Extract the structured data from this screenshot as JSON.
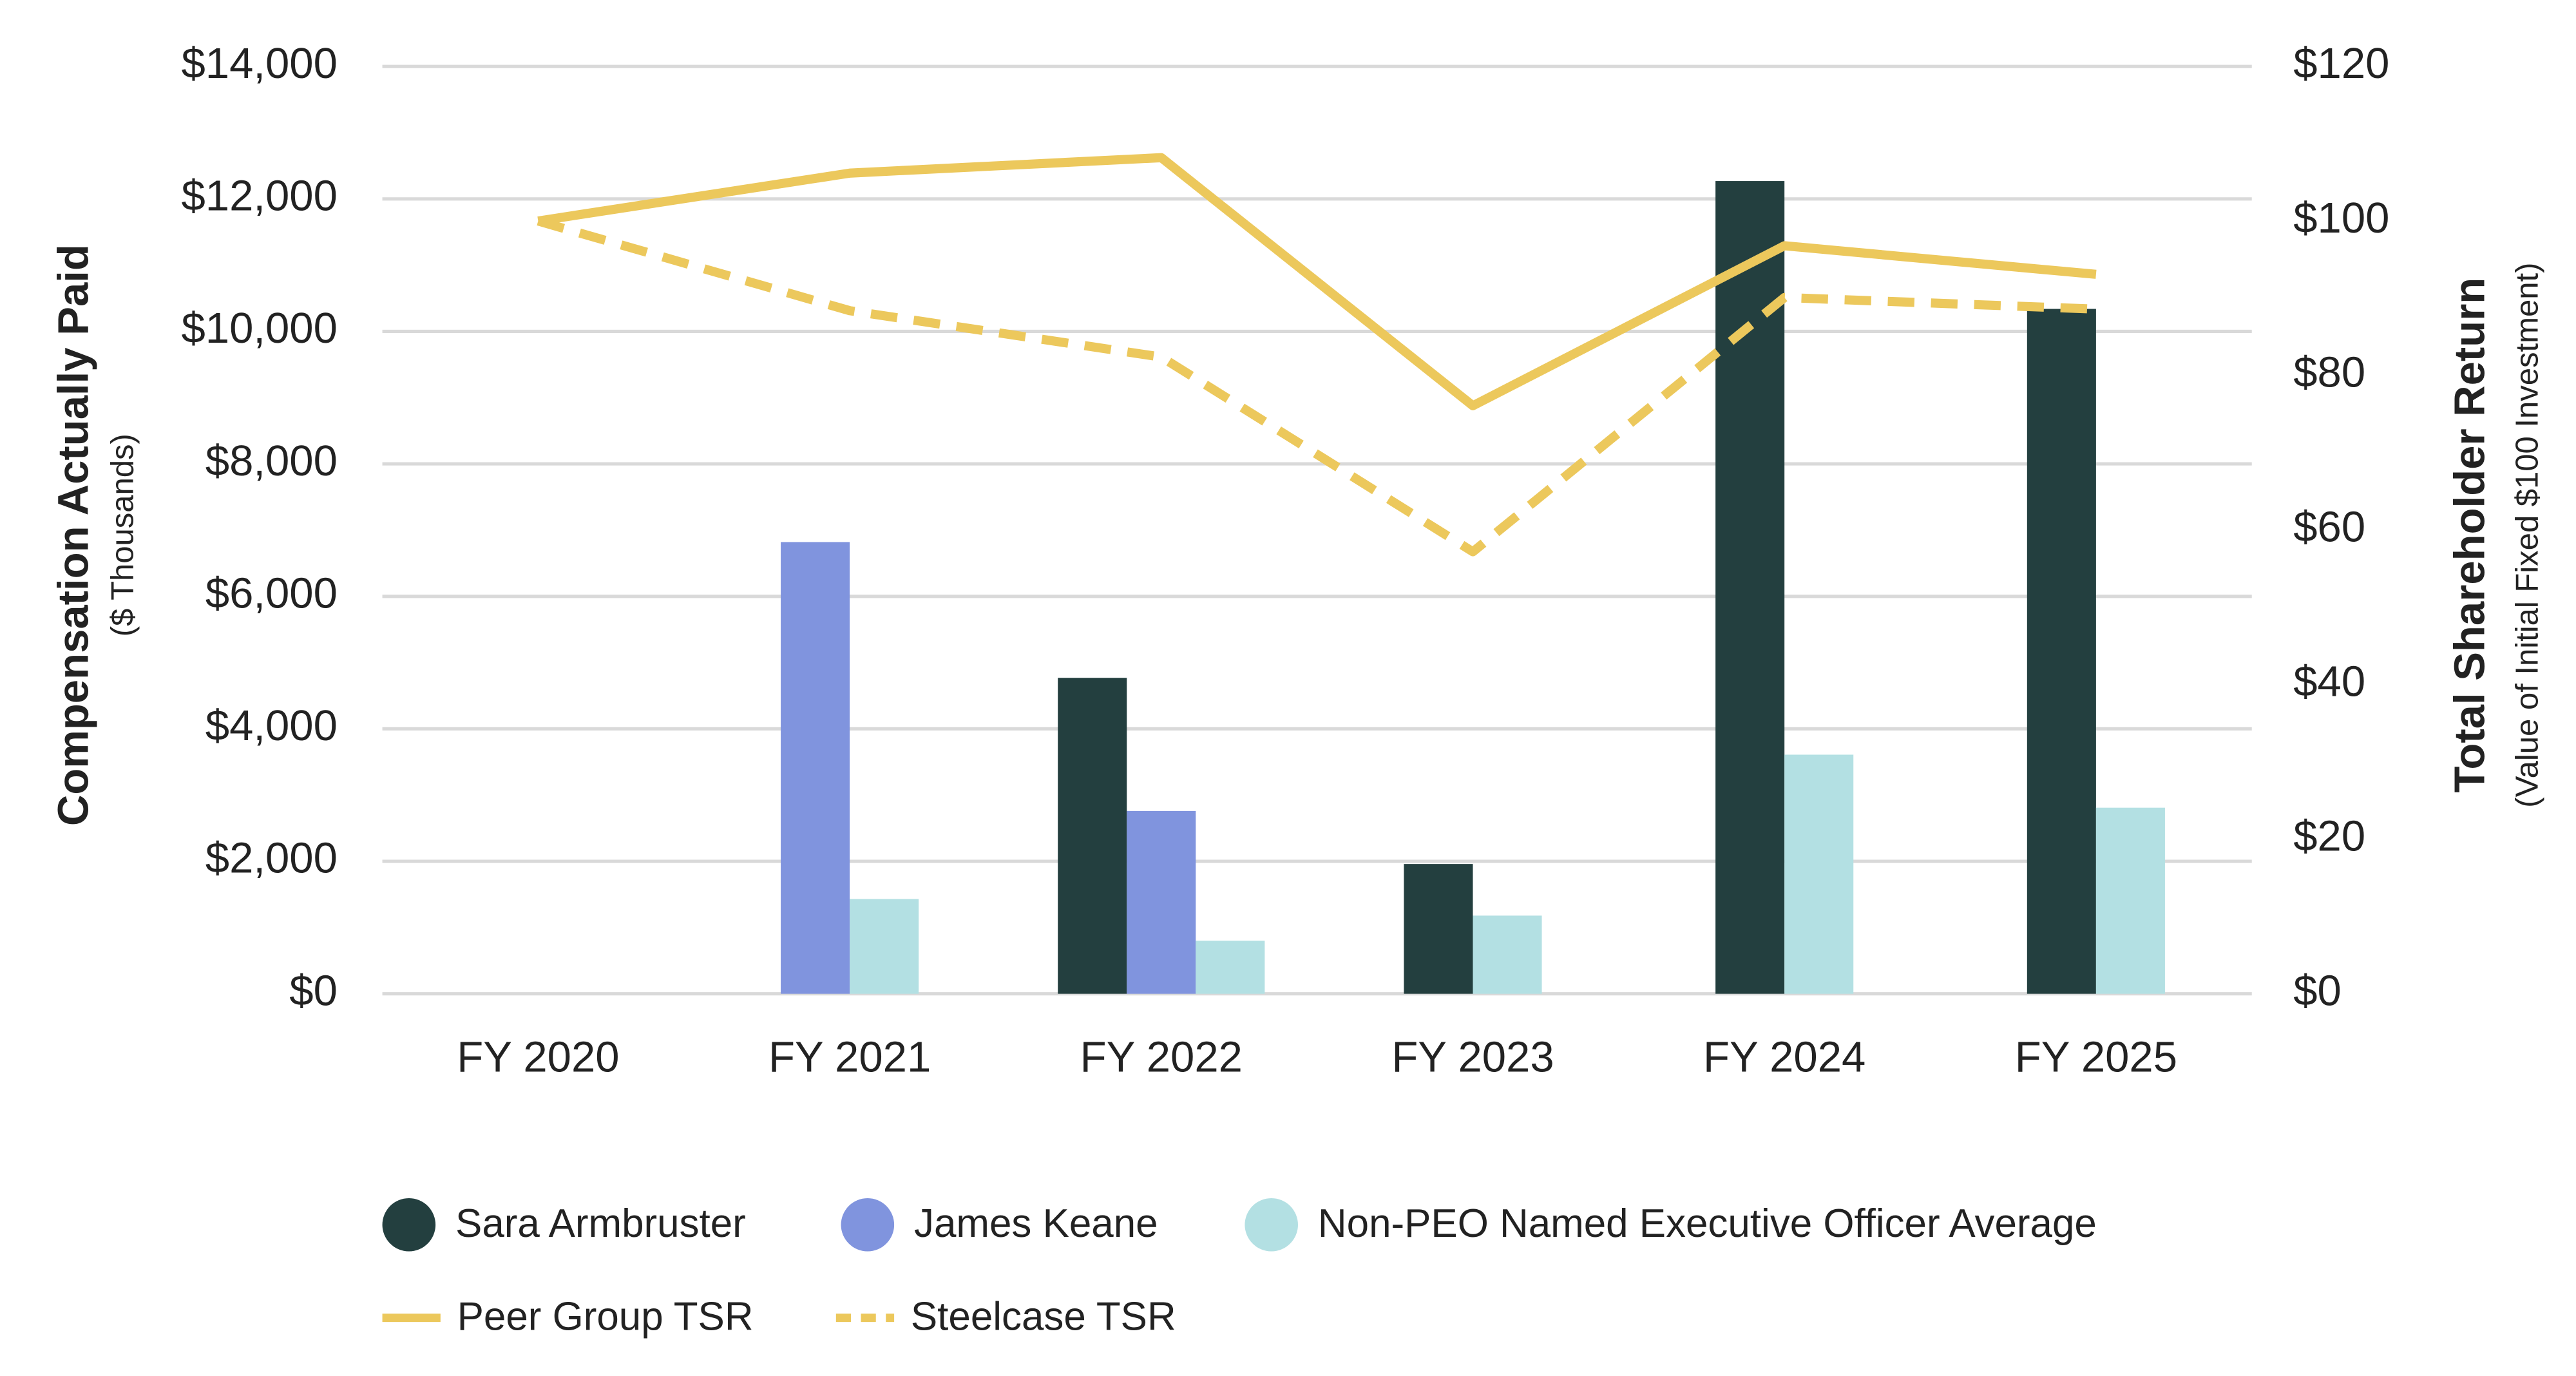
{
  "chart_data": {
    "type": "bar",
    "y_label": "Compensation Actually Paid",
    "y_sublabel": "($ Thousands)",
    "y2_label": "Total Shareholder Return",
    "y2_sublabel": "(Value of Initial Fixed $100 Investment)",
    "categories": [
      "FY 2020",
      "FY 2021",
      "FY 2022",
      "FY 2023",
      "FY 2024",
      "FY 2025"
    ],
    "ylim": [
      0,
      14000
    ],
    "yticks": [
      {
        "value": 0,
        "label": "$0"
      },
      {
        "value": 2000,
        "label": "$2,000"
      },
      {
        "value": 4000,
        "label": "$4,000"
      },
      {
        "value": 6000,
        "label": "$6,000"
      },
      {
        "value": 8000,
        "label": "$8,000"
      },
      {
        "value": 10000,
        "label": "$10,000"
      },
      {
        "value": 12000,
        "label": "$12,000"
      },
      {
        "value": 14000,
        "label": "$14,000"
      }
    ],
    "y2lim": [
      0,
      120
    ],
    "y2ticks": [
      {
        "value": 0,
        "label": "$0"
      },
      {
        "value": 20,
        "label": "$20"
      },
      {
        "value": 40,
        "label": "$40"
      },
      {
        "value": 60,
        "label": "$60"
      },
      {
        "value": 80,
        "label": "$80"
      },
      {
        "value": 100,
        "label": "$100"
      },
      {
        "value": 120,
        "label": "$120"
      }
    ],
    "grid": true,
    "series": [
      {
        "name": "Sara Armbruster",
        "type": "bar",
        "color": "#233f3f",
        "values": [
          null,
          null,
          4770,
          1960,
          12270,
          10340
        ]
      },
      {
        "name": "James Keane",
        "type": "bar",
        "color": "#8094de",
        "values": [
          null,
          6820,
          2760,
          null,
          null,
          null
        ]
      },
      {
        "name": "Non-PEO Named Executive Officer Average",
        "type": "bar",
        "color": "#b3e0e3",
        "values": [
          null,
          1430,
          800,
          1180,
          3610,
          2810
        ]
      },
      {
        "name": "Peer Group TSR",
        "type": "line",
        "axis": "y2",
        "color": "#ecc85c",
        "dash": false,
        "values": [
          100,
          106.2,
          108.2,
          76.1,
          96.8,
          93.1
        ]
      },
      {
        "name": "Steelcase TSR",
        "type": "line",
        "axis": "y2",
        "color": "#ecc85c",
        "dash": true,
        "values": [
          100,
          88.4,
          82.4,
          57.2,
          90.1,
          88.6
        ]
      }
    ]
  }
}
